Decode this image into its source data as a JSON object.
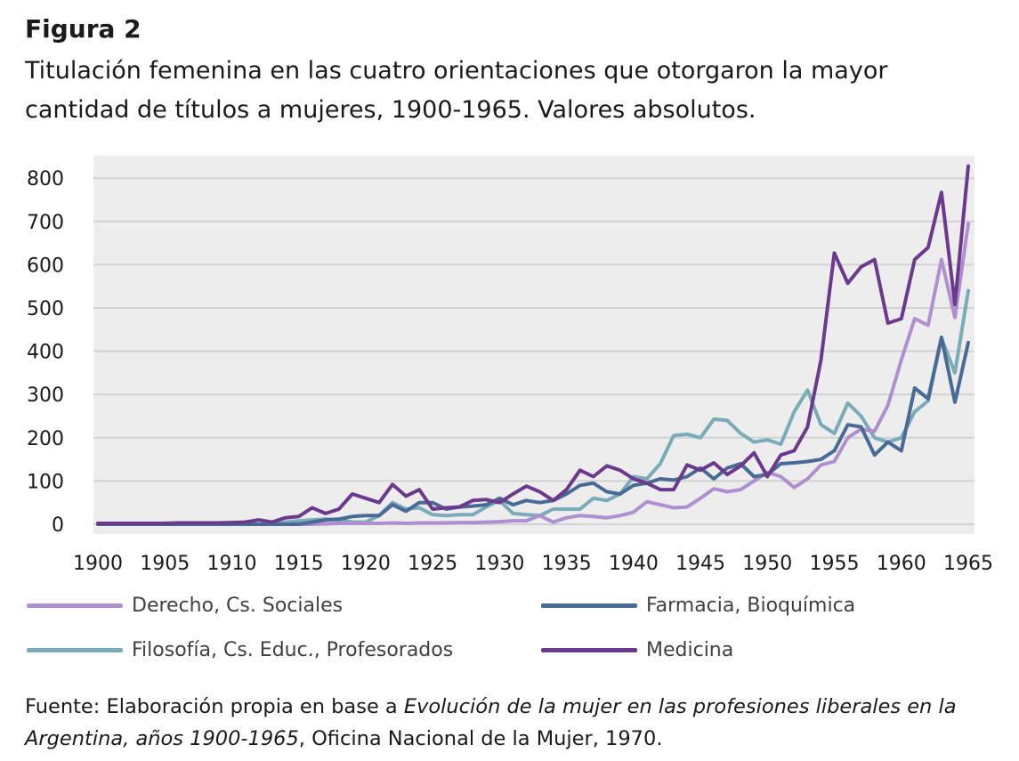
{
  "figure_label": "Figura 2",
  "title_lines": [
    "Titulación femenina en las cuatro orientaciones que otorgaron la mayor",
    "cantidad de títulos a mujeres, 1900-1965. Valores absolutos."
  ],
  "source": {
    "prefix": "Fuente: Elaboración propia en base a ",
    "work": "Evolución de la mujer en las profesiones liberales en la Argentina, años 1900-1965",
    "suffix": ", Oficina Nacional de la Mujer, 1970."
  },
  "chart_data": {
    "type": "line",
    "xlim": [
      1900,
      1965
    ],
    "ylim": [
      0,
      850
    ],
    "x_ticks": [
      1900,
      1905,
      1910,
      1915,
      1920,
      1925,
      1930,
      1935,
      1940,
      1945,
      1950,
      1955,
      1960,
      1965
    ],
    "y_ticks": [
      0,
      100,
      200,
      300,
      400,
      500,
      600,
      700,
      800
    ],
    "grid": "horizontal",
    "legend_position": "bottom",
    "x": [
      1900,
      1901,
      1902,
      1903,
      1904,
      1905,
      1906,
      1907,
      1908,
      1909,
      1910,
      1911,
      1912,
      1913,
      1914,
      1915,
      1916,
      1917,
      1918,
      1919,
      1920,
      1921,
      1922,
      1923,
      1924,
      1925,
      1926,
      1927,
      1928,
      1929,
      1930,
      1931,
      1932,
      1933,
      1934,
      1935,
      1936,
      1937,
      1938,
      1939,
      1940,
      1941,
      1942,
      1943,
      1944,
      1945,
      1946,
      1947,
      1948,
      1949,
      1950,
      1951,
      1952,
      1953,
      1954,
      1955,
      1956,
      1957,
      1958,
      1959,
      1960,
      1961,
      1962,
      1963,
      1964,
      1965
    ],
    "series": [
      {
        "name": "Derecho, Cs. Sociales",
        "color": "#b08fd1",
        "values": [
          0,
          0,
          0,
          0,
          0,
          0,
          0,
          0,
          0,
          0,
          0,
          0,
          0,
          0,
          0,
          0,
          0,
          1,
          2,
          2,
          2,
          2,
          3,
          2,
          3,
          3,
          3,
          4,
          4,
          5,
          6,
          8,
          8,
          20,
          5,
          15,
          20,
          18,
          15,
          20,
          28,
          52,
          45,
          38,
          40,
          60,
          82,
          75,
          80,
          100,
          120,
          110,
          85,
          105,
          137,
          145,
          200,
          220,
          215,
          275,
          380,
          475,
          460,
          612,
          478,
          695
        ]
      },
      {
        "name": "Farmacia, Bioquímica",
        "color": "#4a6a96",
        "values": [
          0,
          0,
          0,
          0,
          0,
          0,
          0,
          0,
          0,
          0,
          0,
          0,
          0,
          0,
          0,
          0,
          5,
          10,
          12,
          18,
          20,
          20,
          45,
          30,
          50,
          50,
          35,
          40,
          42,
          45,
          60,
          45,
          55,
          50,
          55,
          70,
          90,
          95,
          75,
          70,
          90,
          95,
          105,
          102,
          110,
          130,
          105,
          130,
          140,
          110,
          115,
          140,
          142,
          145,
          150,
          170,
          230,
          225,
          160,
          190,
          170,
          315,
          290,
          432,
          282,
          420
        ]
      },
      {
        "name": "Filosofía, Cs. Educ., Profesorados",
        "color": "#7aabb8",
        "values": [
          0,
          0,
          0,
          0,
          0,
          0,
          0,
          0,
          0,
          0,
          0,
          0,
          0,
          0,
          5,
          8,
          10,
          12,
          10,
          5,
          5,
          20,
          50,
          35,
          38,
          22,
          20,
          22,
          22,
          40,
          55,
          25,
          22,
          20,
          35,
          35,
          35,
          60,
          55,
          70,
          110,
          105,
          140,
          205,
          208,
          200,
          243,
          240,
          210,
          190,
          195,
          185,
          260,
          310,
          230,
          210,
          280,
          250,
          200,
          190,
          200,
          260,
          285,
          430,
          350,
          540
        ]
      },
      {
        "name": "Medicina",
        "color": "#6b3a8c",
        "values": [
          2,
          2,
          2,
          2,
          2,
          2,
          3,
          3,
          3,
          3,
          4,
          5,
          10,
          5,
          15,
          18,
          38,
          25,
          35,
          70,
          60,
          50,
          92,
          65,
          80,
          35,
          38,
          40,
          55,
          57,
          50,
          70,
          88,
          75,
          55,
          80,
          125,
          110,
          135,
          125,
          105,
          95,
          80,
          80,
          137,
          125,
          142,
          115,
          135,
          165,
          110,
          160,
          170,
          225,
          380,
          627,
          557,
          595,
          612,
          465,
          475,
          612,
          640,
          767,
          508,
          828
        ]
      }
    ]
  }
}
